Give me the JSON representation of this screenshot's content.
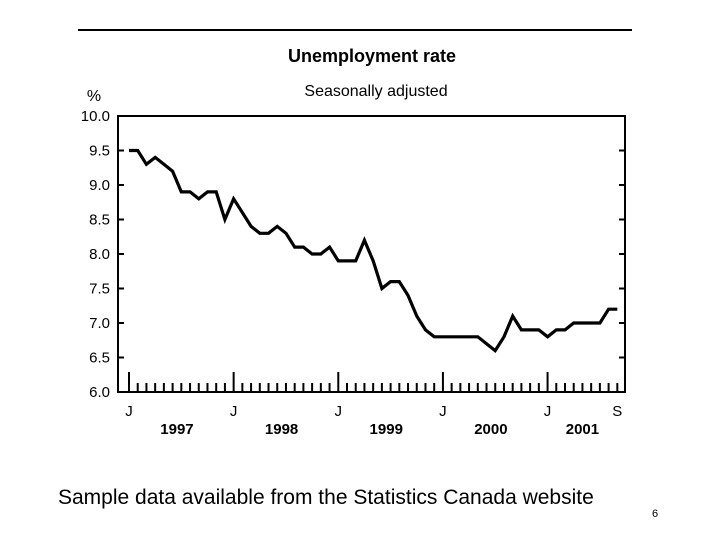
{
  "chart_data": {
    "type": "line",
    "title": "Unemployment rate",
    "subtitle": "Seasonally adjusted",
    "ylabel": "%",
    "xlabel": "",
    "ylim": [
      6.0,
      10.0
    ],
    "yticks": [
      "10.0",
      "9.5",
      "9.0",
      "8.5",
      "8.0",
      "7.5",
      "7.0",
      "6.5",
      "6.0"
    ],
    "x_month_labels": [
      {
        "label": "J",
        "month_index": 0
      },
      {
        "label": "J",
        "month_index": 12
      },
      {
        "label": "J",
        "month_index": 24
      },
      {
        "label": "J",
        "month_index": 36
      },
      {
        "label": "J",
        "month_index": 48
      },
      {
        "label": "S",
        "month_index": 56
      }
    ],
    "x_year_labels": [
      {
        "label": "1997",
        "month_index": 5.5
      },
      {
        "label": "1998",
        "month_index": 17.5
      },
      {
        "label": "1999",
        "month_index": 29.5
      },
      {
        "label": "2000",
        "month_index": 41.5
      },
      {
        "label": "2001",
        "month_index": 52
      }
    ],
    "series": [
      {
        "name": "Unemployment rate",
        "x": [
          0,
          1,
          2,
          3,
          4,
          5,
          6,
          7,
          8,
          9,
          10,
          11,
          12,
          13,
          14,
          15,
          16,
          17,
          18,
          19,
          20,
          21,
          22,
          23,
          24,
          25,
          26,
          27,
          28,
          29,
          30,
          31,
          32,
          33,
          34,
          35,
          36,
          37,
          38,
          39,
          40,
          41,
          42,
          43,
          44,
          45,
          46,
          47,
          48,
          49,
          50,
          51,
          52,
          53,
          54,
          55,
          56
        ],
        "values": [
          9.5,
          9.5,
          9.3,
          9.4,
          9.3,
          9.2,
          8.9,
          8.9,
          8.8,
          8.9,
          8.9,
          8.5,
          8.8,
          8.6,
          8.4,
          8.3,
          8.3,
          8.4,
          8.3,
          8.1,
          8.1,
          8.0,
          8.0,
          8.1,
          7.9,
          7.9,
          7.9,
          8.2,
          7.9,
          7.5,
          7.6,
          7.6,
          7.4,
          7.1,
          6.9,
          6.8,
          6.8,
          6.8,
          6.8,
          6.8,
          6.8,
          6.7,
          6.6,
          6.8,
          7.1,
          6.9,
          6.9,
          6.9,
          6.8,
          6.9,
          6.9,
          7.0,
          7.0,
          7.0,
          7.0,
          7.2,
          7.2
        ]
      }
    ]
  },
  "caption": "Sample data available from the Statistics Canada website",
  "page_number": "6",
  "colors": {
    "line": "#000000",
    "background": "#ffffff"
  }
}
